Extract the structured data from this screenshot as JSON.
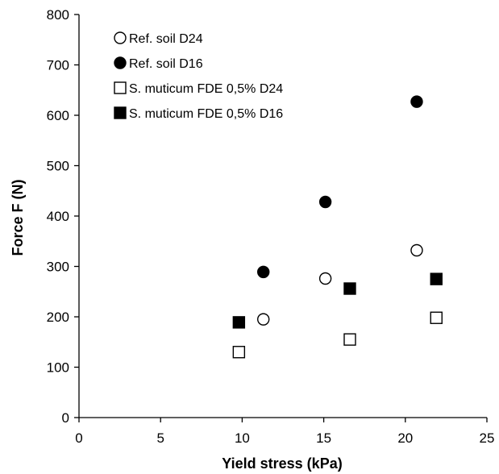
{
  "chart_data": {
    "type": "scatter",
    "title": "",
    "xlabel": "Yield stress (kPa)",
    "ylabel": "Force F (N)",
    "xlim": [
      0,
      25
    ],
    "ylim": [
      0,
      800
    ],
    "xticks": [
      0,
      5,
      10,
      15,
      20,
      25
    ],
    "yticks": [
      0,
      100,
      200,
      300,
      400,
      500,
      600,
      700,
      800
    ],
    "grid": false,
    "legend_position": "top-left",
    "series": [
      {
        "name": "Ref. soil D24",
        "marker": "circle",
        "fill": "none",
        "color": "#000000",
        "points": [
          [
            11.3,
            195
          ],
          [
            15.1,
            276
          ],
          [
            20.7,
            332
          ]
        ]
      },
      {
        "name": "Ref. soil D16",
        "marker": "circle",
        "fill": "#000000",
        "color": "#000000",
        "points": [
          [
            11.3,
            289
          ],
          [
            15.1,
            428
          ],
          [
            20.7,
            627
          ]
        ]
      },
      {
        "name": "S. muticum FDE 0,5% D24",
        "marker": "square",
        "fill": "none",
        "color": "#000000",
        "points": [
          [
            9.8,
            130
          ],
          [
            16.6,
            155
          ],
          [
            21.9,
            198
          ]
        ]
      },
      {
        "name": "S. muticum FDE 0,5% D16",
        "marker": "square",
        "fill": "#000000",
        "color": "#000000",
        "points": [
          [
            9.8,
            189
          ],
          [
            16.6,
            256
          ],
          [
            21.9,
            275
          ]
        ]
      }
    ]
  }
}
